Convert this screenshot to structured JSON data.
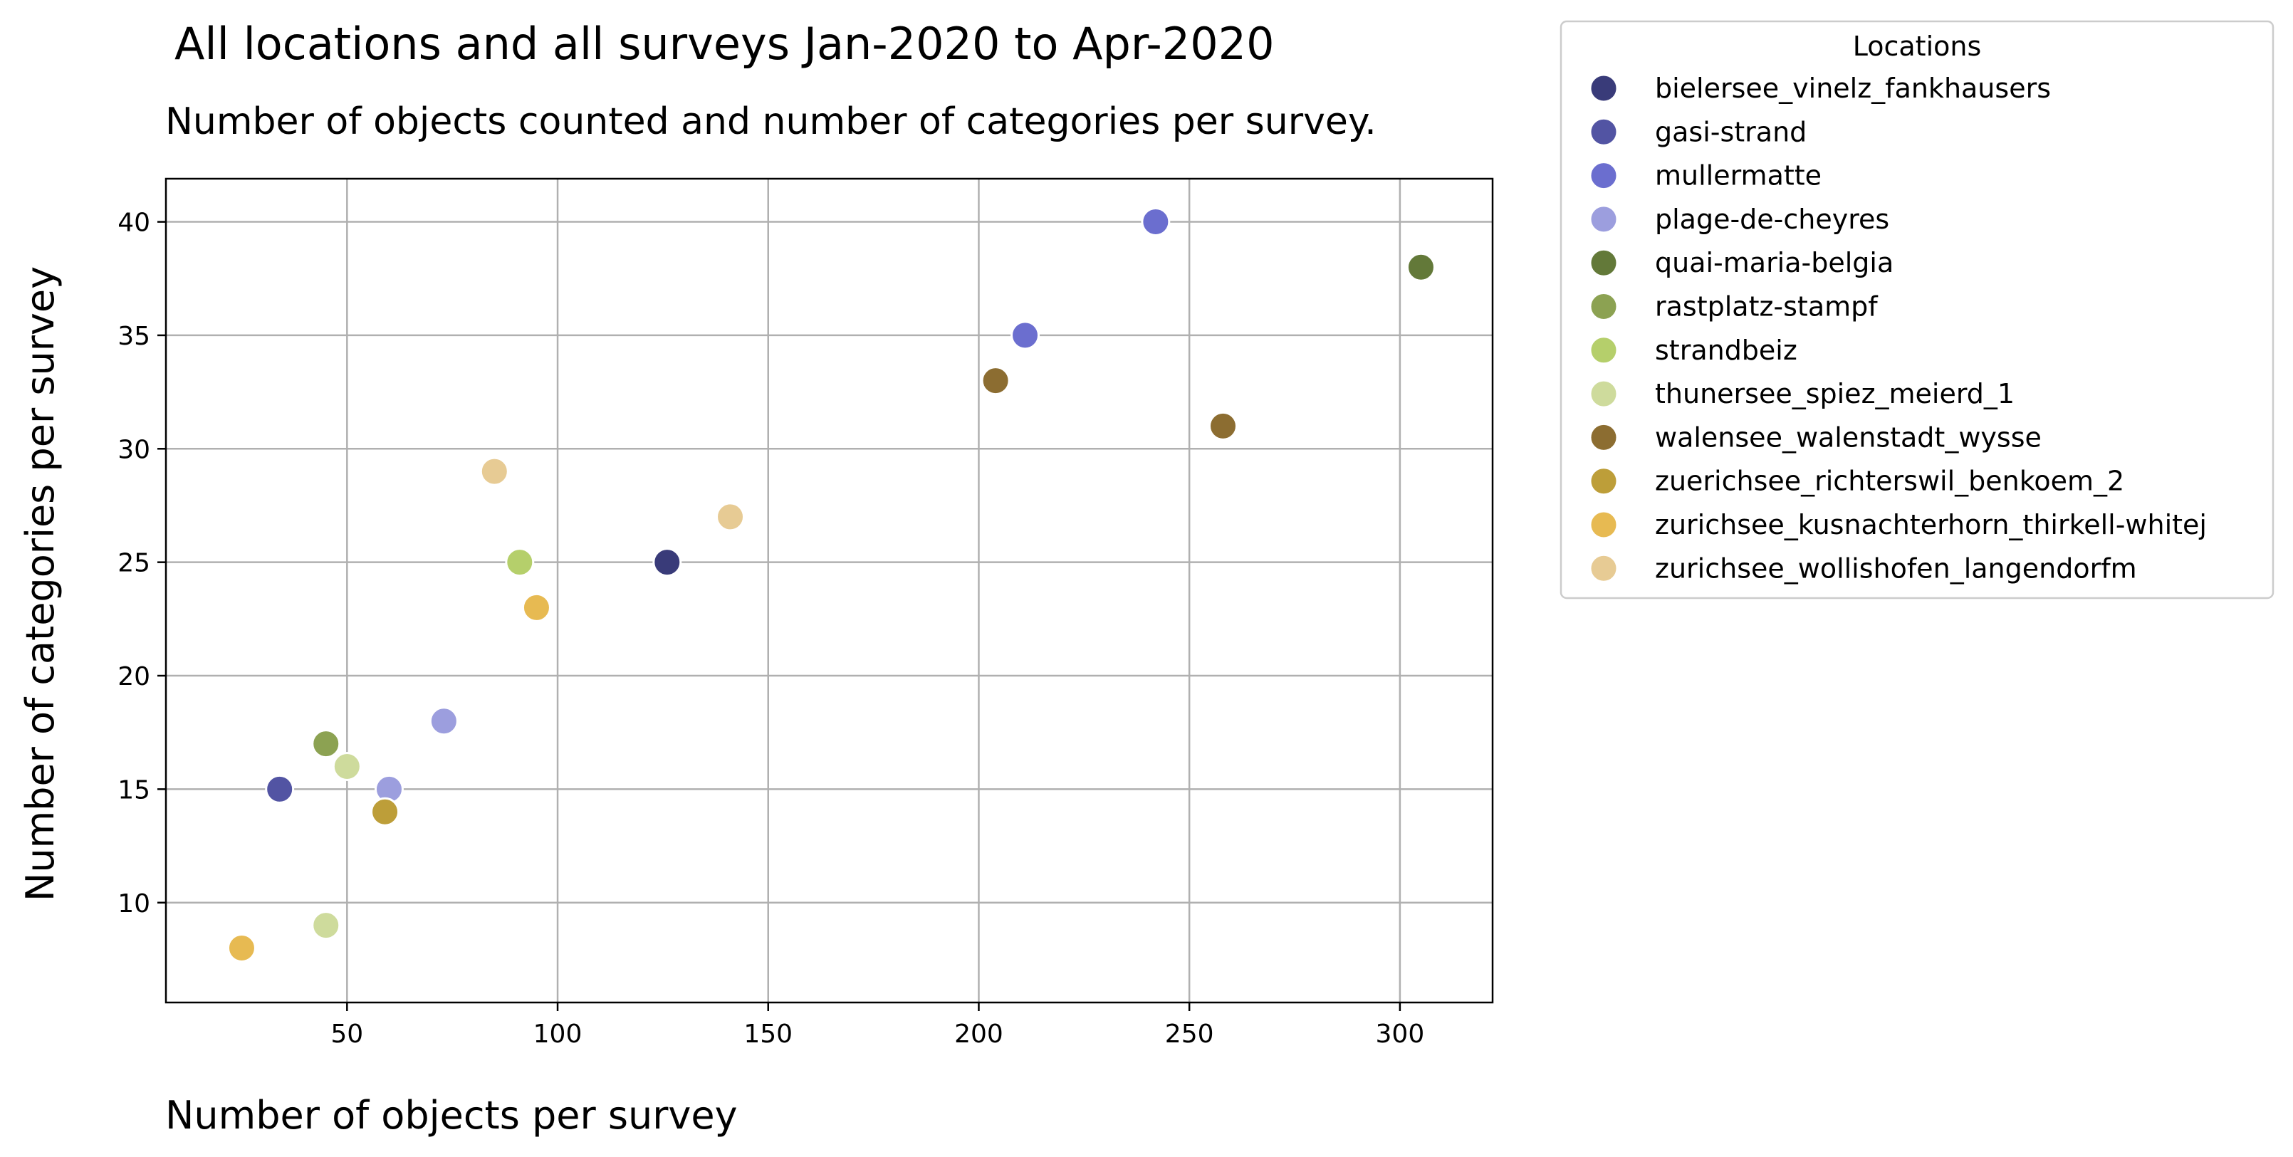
{
  "chart_data": {
    "type": "scatter",
    "title": "All locations and all surveys Jan-2020 to Apr-2020",
    "subtitle": "Number of objects counted and number of categories per survey.",
    "xlabel": "Number of objects per survey",
    "ylabel": "Number of categories per survey",
    "xlim": [
      7,
      322
    ],
    "ylim": [
      5.6,
      41.9
    ],
    "x_ticks": [
      50,
      100,
      150,
      200,
      250,
      300
    ],
    "y_ticks": [
      10,
      15,
      20,
      25,
      30,
      35,
      40
    ],
    "grid": true,
    "legend": {
      "title": "Locations",
      "placement": "outside-top-right"
    },
    "series": [
      {
        "name": "bielersee_vinelz_fankhausers",
        "color": "#393b79",
        "points": [
          [
            126,
            25
          ]
        ]
      },
      {
        "name": "gasi-strand",
        "color": "#5254a3",
        "points": [
          [
            34,
            15
          ]
        ]
      },
      {
        "name": "mullermatte",
        "color": "#6b6ecf",
        "points": [
          [
            242,
            40
          ],
          [
            211,
            35
          ]
        ]
      },
      {
        "name": "plage-de-cheyres",
        "color": "#9c9ede",
        "points": [
          [
            73,
            18
          ],
          [
            60,
            15
          ]
        ]
      },
      {
        "name": "quai-maria-belgia",
        "color": "#637939",
        "points": [
          [
            305,
            38
          ]
        ]
      },
      {
        "name": "rastplatz-stampf",
        "color": "#8ca252",
        "points": [
          [
            45,
            17
          ]
        ]
      },
      {
        "name": "strandbeiz",
        "color": "#b5cf6b",
        "points": [
          [
            91,
            25
          ]
        ]
      },
      {
        "name": "thunersee_spiez_meierd_1",
        "color": "#cedb9c",
        "points": [
          [
            50,
            16
          ],
          [
            45,
            9
          ]
        ]
      },
      {
        "name": "walensee_walenstadt_wysse",
        "color": "#8c6d31",
        "points": [
          [
            204,
            33
          ],
          [
            258,
            31
          ]
        ]
      },
      {
        "name": "zuerichsee_richterswil_benkoem_2",
        "color": "#bd9e39",
        "points": [
          [
            59,
            14
          ]
        ]
      },
      {
        "name": "zurichsee_kusnachterhorn_thirkell-whitej",
        "color": "#e7ba52",
        "points": [
          [
            95,
            23
          ],
          [
            25,
            8
          ]
        ]
      },
      {
        "name": "zurichsee_wollishofen_langendorfm",
        "color": "#e7cb94",
        "points": [
          [
            85,
            29
          ],
          [
            141,
            27
          ]
        ]
      }
    ]
  }
}
